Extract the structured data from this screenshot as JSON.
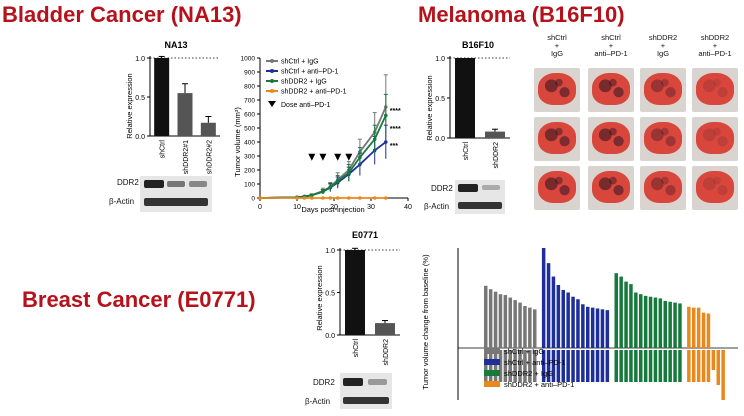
{
  "titles": {
    "bladder": "Bladder Cancer (NA13)",
    "melanoma": "Melanoma (B16F10)",
    "breast": "Breast Cancer (E0771)"
  },
  "panels": {
    "na13_bar": {
      "title": "NA13",
      "ylabel": "Relative expression",
      "yticks": [
        "0.0",
        "0.5",
        "1.0"
      ],
      "categories": [
        "shCtrl",
        "shDDR2#1",
        "shDDR2#2"
      ],
      "blot_labels": [
        "DDR2",
        "β-Actin"
      ]
    },
    "b16_bar": {
      "title": "B16F10",
      "ylabel": "Relative expression",
      "yticks": [
        "0.0",
        "0.5",
        "1.0"
      ],
      "categories": [
        "shCtrl",
        "shDDR2"
      ],
      "blot_labels": [
        "DDR2",
        "β-Actin"
      ]
    },
    "e0771_bar": {
      "title": "E0771",
      "ylabel": "Relative expression",
      "yticks": [
        "0.0",
        "0.5",
        "1.0"
      ],
      "categories": [
        "shCtrl",
        "shDDR2"
      ],
      "blot_labels": [
        "DDR2",
        "β-Actin"
      ]
    },
    "tumor_growth": {
      "ylabel": "Tumor volume (mm³)",
      "xlabel": "Days post-injection",
      "xticks": [
        "0",
        "10",
        "20",
        "30",
        "40"
      ],
      "yticks": [
        "0",
        "100",
        "200",
        "300",
        "400",
        "500",
        "600",
        "700",
        "800",
        "900",
        "1000"
      ],
      "legend": [
        "shCtrl + IgG",
        "shCtrl + anti–PD-1",
        "shDDR2 + IgG",
        "shDDR2 + anti–PD-1"
      ],
      "dose_label": "Dose anti–PD-1",
      "significance": [
        "****",
        "****",
        "***"
      ]
    },
    "lungs": {
      "columns": [
        [
          "shCtrl",
          "+",
          "IgG"
        ],
        [
          "shCtrl",
          "+",
          "anti–PD-1"
        ],
        [
          "shDDR2",
          "+",
          "IgG"
        ],
        [
          "shDDR2",
          "+",
          "anti–PD-1"
        ]
      ]
    },
    "waterfall": {
      "ylabel": "Tumor volume change from baseline (%)",
      "legend": [
        "shCtrl + IgG",
        "shCtrl + anti–PD-1",
        "shDDR2 + IgG",
        "shDDR2 + anti–PD-1"
      ]
    }
  },
  "colors": {
    "title_red": "#b5121b",
    "grey": "#777777",
    "blue": "#1f2f9a",
    "green": "#157a3c",
    "orange": "#e8891d"
  },
  "chart_data": [
    {
      "type": "bar",
      "title": "NA13",
      "ylabel": "Relative expression",
      "categories": [
        "shCtrl",
        "shDDR2#1",
        "shDDR2#2"
      ],
      "values": [
        1.0,
        0.55,
        0.17
      ],
      "errors": [
        0.02,
        0.12,
        0.08
      ],
      "ylim": [
        0,
        1.0
      ],
      "reference_line": 1.0
    },
    {
      "type": "line",
      "ylabel": "Tumor volume (mm³)",
      "xlabel": "Days post-injection",
      "xlim": [
        0,
        40
      ],
      "ylim": [
        0,
        1000
      ],
      "x": [
        0,
        10,
        12,
        14,
        17,
        19,
        21,
        24,
        27,
        31,
        34
      ],
      "series": [
        {
          "name": "shCtrl + IgG",
          "color": "#777777",
          "values": [
            0,
            5,
            10,
            20,
            50,
            80,
            130,
            200,
            330,
            470,
            650
          ],
          "errors": [
            0,
            2,
            4,
            8,
            20,
            30,
            50,
            60,
            90,
            140,
            230
          ]
        },
        {
          "name": "shCtrl + anti–PD-1",
          "color": "#1f2f9a",
          "values": [
            0,
            5,
            10,
            20,
            45,
            75,
            110,
            170,
            240,
            340,
            400
          ],
          "errors": [
            0,
            2,
            4,
            8,
            15,
            30,
            40,
            50,
            80,
            100,
            120
          ]
        },
        {
          "name": "shDDR2 + IgG",
          "color": "#157a3c",
          "values": [
            0,
            5,
            10,
            20,
            45,
            75,
            120,
            180,
            290,
            420,
            590
          ],
          "errors": [
            0,
            2,
            4,
            8,
            15,
            25,
            40,
            60,
            70,
            100,
            150
          ]
        },
        {
          "name": "shDDR2 + anti–PD-1",
          "color": "#e8891d",
          "values": [
            0,
            0,
            0,
            0,
            0,
            0,
            0,
            0,
            0,
            0,
            0
          ],
          "errors": [
            0,
            0,
            0,
            0,
            0,
            0,
            0,
            0,
            0,
            0,
            0
          ]
        }
      ],
      "dose_days": [
        14,
        17,
        21,
        24
      ],
      "significance": [
        "****",
        "****",
        "***"
      ]
    },
    {
      "type": "bar",
      "title": "B16F10",
      "ylabel": "Relative expression",
      "categories": [
        "shCtrl",
        "shDDR2"
      ],
      "values": [
        1.0,
        0.08
      ],
      "errors": [
        0.0,
        0.03
      ],
      "ylim": [
        0,
        1.0
      ],
      "reference_line": 1.0
    },
    {
      "type": "bar",
      "title": "E0771",
      "ylabel": "Relative expression",
      "categories": [
        "shCtrl",
        "shDDR2"
      ],
      "values": [
        1.0,
        0.14
      ],
      "errors": [
        0.02,
        0.03
      ],
      "ylim": [
        0,
        1.0
      ],
      "reference_line": 1.0
    },
    {
      "type": "bar",
      "ylabel": "Tumor volume change from baseline (%)",
      "series": [
        {
          "name": "shCtrl + IgG",
          "color": "#777777",
          "values": [
            550,
            510,
            480,
            450,
            440,
            410,
            380,
            350,
            310,
            290,
            270
          ]
        },
        {
          "name": "shCtrl + anti–PD-1",
          "color": "#1f2f9a",
          "values": [
            1000,
            820,
            660,
            560,
            500,
            470,
            420,
            390,
            330,
            300,
            290,
            280,
            270,
            260
          ]
        },
        {
          "name": "shDDR2 + IgG",
          "color": "#157a3c",
          "values": [
            700,
            660,
            600,
            570,
            470,
            450,
            430,
            420,
            410,
            400,
            370,
            360,
            350,
            340
          ]
        },
        {
          "name": "shDDR2 + anti–PD-1",
          "color": "#e8891d",
          "values": [
            300,
            290,
            290,
            230,
            220,
            -40,
            -70,
            -100
          ]
        }
      ]
    }
  ]
}
